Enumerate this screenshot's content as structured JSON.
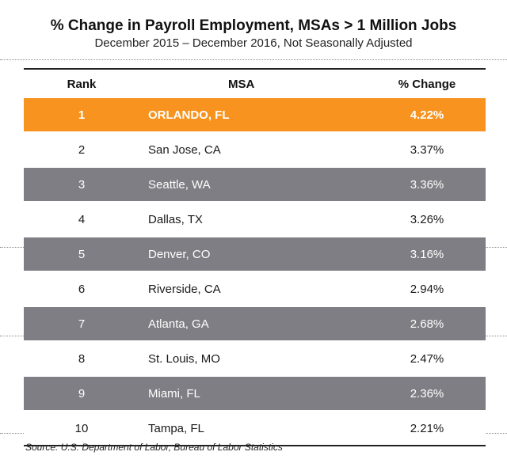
{
  "chart_data": {
    "type": "table",
    "title": "% Change in Payroll Employment, MSAs > 1 Million Jobs",
    "subtitle": "December 2015 – December 2016, Not Seasonally Adjusted",
    "columns": [
      "Rank",
      "MSA",
      "% Change"
    ],
    "rows": [
      {
        "rank": "1",
        "msa": "ORLANDO, FL",
        "change": "4.22%",
        "value": 4.22
      },
      {
        "rank": "2",
        "msa": "San Jose, CA",
        "change": "3.37%",
        "value": 3.37
      },
      {
        "rank": "3",
        "msa": "Seattle, WA",
        "change": "3.36%",
        "value": 3.36
      },
      {
        "rank": "4",
        "msa": "Dallas, TX",
        "change": "3.26%",
        "value": 3.26
      },
      {
        "rank": "5",
        "msa": "Denver, CO",
        "change": "3.16%",
        "value": 3.16
      },
      {
        "rank": "6",
        "msa": "Riverside, CA",
        "change": "2.94%",
        "value": 2.94
      },
      {
        "rank": "7",
        "msa": "Atlanta, GA",
        "change": "2.68%",
        "value": 2.68
      },
      {
        "rank": "8",
        "msa": "St. Louis, MO",
        "change": "2.47%",
        "value": 2.47
      },
      {
        "rank": "9",
        "msa": "Miami, FL",
        "change": "2.36%",
        "value": 2.36
      },
      {
        "rank": "10",
        "msa": "Tampa, FL",
        "change": "2.21%",
        "value": 2.21
      }
    ],
    "highlight_rank": "1",
    "source": "Source: U.S. Department of Labor, Bureau of Labor Statistics"
  },
  "colors": {
    "highlight": "#f7931e",
    "stripe": "#7f7e84",
    "plain": "#ffffff",
    "rule": "#222222"
  }
}
